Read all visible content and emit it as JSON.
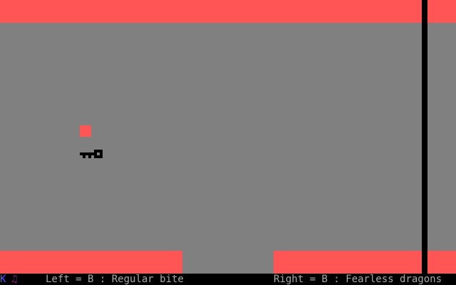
{
  "status": {
    "level_indicator": "K",
    "sound_indicator": "♫",
    "left_difficulty": "Left = B : Regular bite",
    "right_difficulty": "Right = B : Fearless dragons"
  },
  "colors": {
    "wall": "#ff5555",
    "floor": "#808080",
    "player": "#ff5555",
    "key": "#000000",
    "status_text": "#aaaaaa"
  },
  "objects": {
    "player": "square-cursor",
    "item": "key-icon"
  }
}
